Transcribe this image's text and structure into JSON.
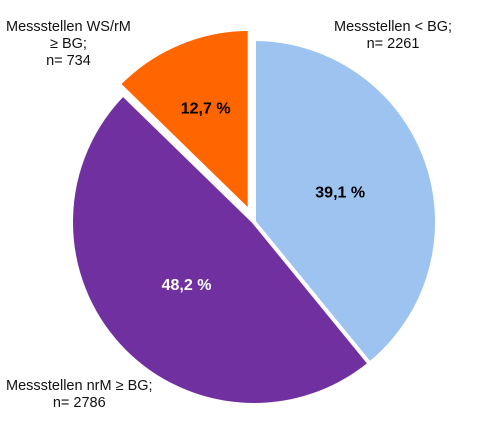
{
  "chart_data": {
    "type": "pie",
    "slices": [
      {
        "label_lines": [
          "Messstellen < BG;",
          "n= 2261"
        ],
        "count": 2261,
        "percent_label": "39,1 %",
        "percent": 39.1,
        "color": "#9dc3f0",
        "text_color": "#000000"
      },
      {
        "label_lines": [
          "Messstellen nrM ≥ BG;",
          "n= 2786"
        ],
        "count": 2786,
        "percent_label": "48,2 %",
        "percent": 48.2,
        "color": "#7030a0",
        "text_color": "#ffffff"
      },
      {
        "label_lines": [
          "Messstellen WS/rM",
          "≥ BG;",
          "n= 734"
        ],
        "count": 734,
        "percent_label": "12,7 %",
        "percent": 12.7,
        "color": "#ff6600",
        "text_color": "#000000",
        "exploded": true
      }
    ],
    "start_angle_deg": 0,
    "direction": "clockwise",
    "legend": "none"
  }
}
